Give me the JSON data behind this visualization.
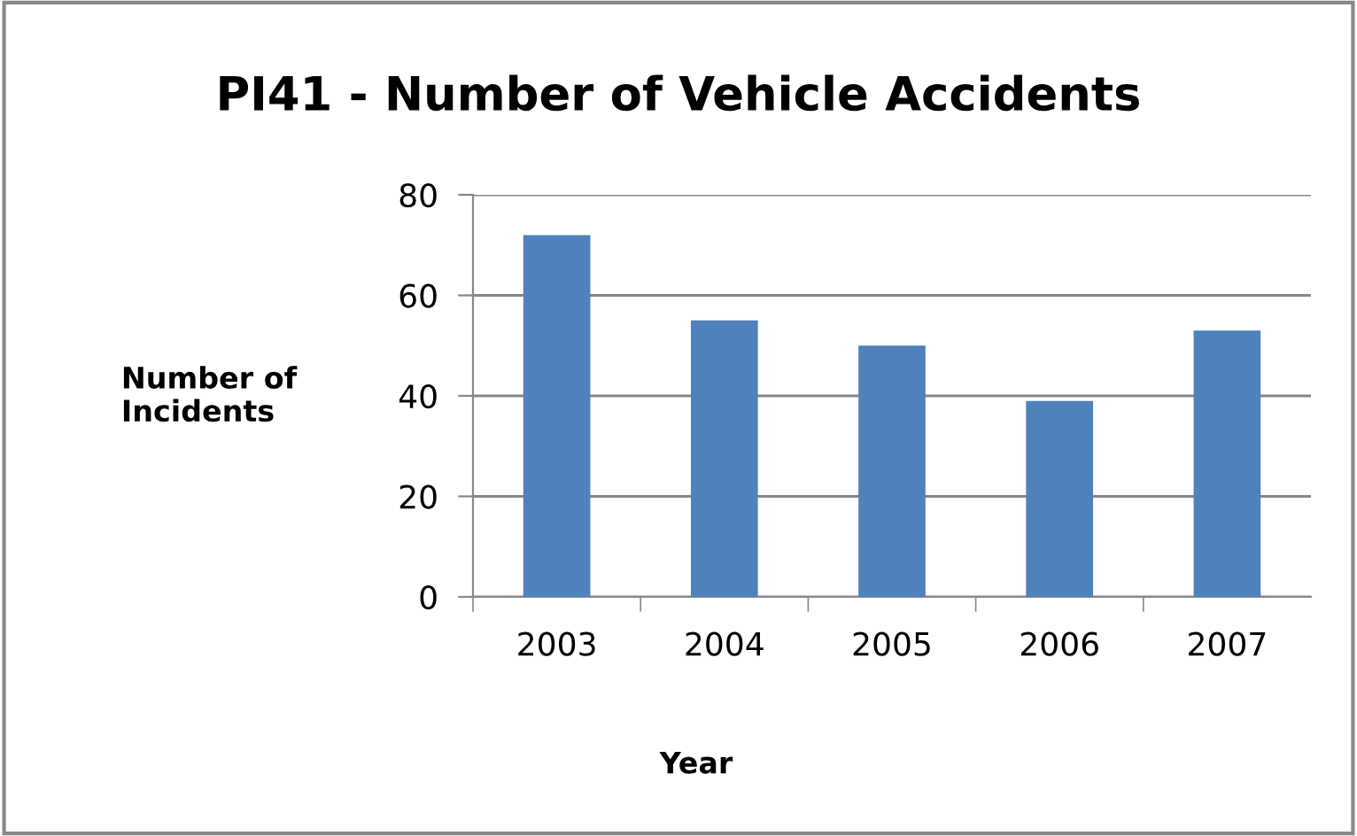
{
  "chart_data": {
    "type": "bar",
    "title": "PI41 - Number of Vehicle Accidents",
    "xlabel": "Year",
    "ylabel": "Number of\nIncidents",
    "categories": [
      "2003",
      "2004",
      "2005",
      "2006",
      "2007"
    ],
    "values": [
      72,
      55,
      50,
      39,
      53
    ],
    "color": "#4f81bd",
    "ylim": [
      0,
      80
    ],
    "yticks": [
      0,
      20,
      40,
      60,
      80
    ],
    "grid": "y",
    "legend": false
  }
}
